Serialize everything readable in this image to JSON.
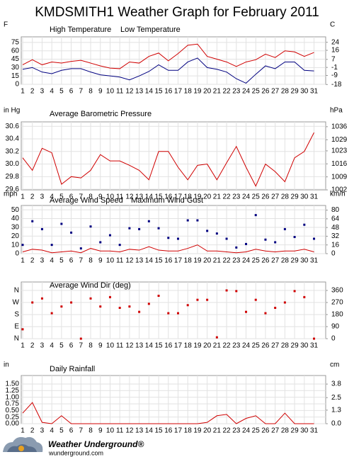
{
  "title": "KMDSMITH1 Weather Graph for February 2011",
  "chart_data": [
    {
      "type": "line",
      "ylabel": "F",
      "y2label": "C",
      "x": [
        1,
        2,
        3,
        4,
        5,
        6,
        7,
        8,
        9,
        10,
        11,
        12,
        13,
        14,
        15,
        16,
        17,
        18,
        19,
        20,
        21,
        22,
        23,
        24,
        25,
        26,
        27,
        28,
        29,
        30,
        31
      ],
      "xticks": [
        1,
        2,
        3,
        4,
        5,
        6,
        7,
        8,
        9,
        10,
        11,
        12,
        13,
        14,
        15,
        16,
        17,
        18,
        19,
        20,
        21,
        22,
        23,
        24,
        25,
        26,
        27,
        28,
        29,
        30,
        31
      ],
      "xlim": [
        1,
        32.2
      ],
      "ylim": [
        0,
        85
      ],
      "yticks": [
        75,
        60,
        45,
        30,
        15,
        0
      ],
      "y2lim": [
        -17.8,
        29.4
      ],
      "y2ticks": [
        24,
        16,
        7,
        -1,
        -9,
        -18
      ],
      "grid": true,
      "series": [
        {
          "name": "High Temperature",
          "color": "#d00000",
          "values": [
            35,
            44,
            35,
            40,
            38,
            41,
            43,
            38,
            33,
            29,
            28,
            40,
            38,
            50,
            56,
            42,
            55,
            70,
            72,
            50,
            45,
            40,
            32,
            40,
            44,
            54,
            48,
            60,
            58,
            50,
            57
          ]
        },
        {
          "name": "Low Temperature",
          "color": "#000080",
          "values": [
            27,
            30,
            22,
            19,
            25,
            28,
            28,
            22,
            17,
            15,
            13,
            8,
            15,
            23,
            35,
            25,
            25,
            40,
            47,
            30,
            27,
            22,
            10,
            2,
            18,
            33,
            28,
            40,
            40,
            25,
            24
          ]
        }
      ]
    },
    {
      "type": "line",
      "ylabel": "in Hg",
      "y2label": "hPa",
      "x": [
        1,
        2,
        3,
        4,
        5,
        6,
        7,
        8,
        9,
        10,
        11,
        12,
        13,
        14,
        15,
        16,
        17,
        18,
        19,
        20,
        21,
        22,
        23,
        24,
        25,
        26,
        27,
        28,
        29,
        30,
        31
      ],
      "xticks": [
        1,
        2,
        3,
        4,
        5,
        6,
        7,
        8,
        9,
        10,
        11,
        12,
        13,
        14,
        15,
        16,
        17,
        18,
        19,
        20,
        21,
        22,
        23,
        24,
        25,
        26,
        27,
        28,
        29,
        30,
        31
      ],
      "xlim": [
        1,
        32.2
      ],
      "ylim": [
        29.59,
        30.67
      ],
      "yticks": [
        30.6,
        30.4,
        30.2,
        {
          "value": 30,
          "label": "30.0"
        },
        29.8,
        29.6
      ],
      "y2lim": [
        1002.0,
        1038.6
      ],
      "y2ticks": [
        1036,
        1029,
        1023,
        1016,
        1009,
        1002
      ],
      "grid": true,
      "series": [
        {
          "name": "Average Barometric Pressure",
          "color": "#d00000",
          "values": [
            30.1,
            29.9,
            30.25,
            30.18,
            29.68,
            29.8,
            29.78,
            29.9,
            30.15,
            30.05,
            30.05,
            29.98,
            29.9,
            29.75,
            30.2,
            30.2,
            29.95,
            29.75,
            29.98,
            30.0,
            29.75,
            30.02,
            30.28,
            29.95,
            29.65,
            30.0,
            29.88,
            29.72,
            30.1,
            30.2,
            30.5
          ]
        }
      ]
    },
    {
      "type": "line",
      "ylabel": "mph",
      "y2label": "km/h",
      "x": [
        1,
        2,
        3,
        4,
        5,
        6,
        7,
        8,
        9,
        10,
        11,
        12,
        13,
        14,
        15,
        16,
        17,
        18,
        19,
        20,
        21,
        22,
        23,
        24,
        25,
        26,
        27,
        28,
        29,
        30,
        31
      ],
      "xticks": [
        1,
        2,
        3,
        4,
        5,
        6,
        7,
        8,
        9,
        10,
        11,
        12,
        13,
        14,
        15,
        16,
        17,
        18,
        19,
        20,
        21,
        22,
        23,
        24,
        25,
        26,
        27,
        28,
        29,
        30,
        31
      ],
      "xlim": [
        1,
        32.2
      ],
      "ylim": [
        0,
        55
      ],
      "yticks": [
        50,
        40,
        30,
        20,
        10,
        0
      ],
      "y2lim": [
        0,
        88.5
      ],
      "y2ticks": [
        80,
        64,
        48,
        32,
        16,
        0
      ],
      "grid": true,
      "series": [
        {
          "name": "Average Wind Speed",
          "color": "#d00000",
          "style": "line",
          "values": [
            2,
            5,
            4,
            1,
            2,
            3,
            1,
            6,
            3,
            3,
            2,
            5,
            4,
            8,
            4,
            3,
            3,
            6,
            10,
            3,
            3,
            2,
            1,
            2,
            5,
            3,
            2,
            3,
            3,
            5,
            2
          ]
        },
        {
          "name": "Maximum Wind Gust",
          "color": "#000080",
          "style": "dots",
          "values": [
            10,
            37,
            28,
            10,
            34,
            24,
            6,
            31,
            13,
            21,
            10,
            29,
            28,
            37,
            29,
            18,
            17,
            38,
            38,
            26,
            23,
            17,
            7,
            11,
            44,
            16,
            13,
            28,
            19,
            33,
            17
          ]
        }
      ]
    },
    {
      "type": "scatter",
      "x": [
        1,
        2,
        3,
        4,
        5,
        6,
        7,
        8,
        9,
        10,
        11,
        12,
        13,
        14,
        15,
        16,
        17,
        18,
        19,
        20,
        21,
        22,
        23,
        24,
        25,
        26,
        27,
        28,
        29,
        30,
        31
      ],
      "xticks": [
        1,
        2,
        3,
        4,
        5,
        6,
        7,
        8,
        9,
        10,
        11,
        12,
        13,
        14,
        15,
        16,
        17,
        18,
        19,
        20,
        21,
        22,
        23,
        24,
        25,
        26,
        27,
        28,
        29,
        30,
        31
      ],
      "xlim": [
        1,
        32.2
      ],
      "ylim": [
        0,
        423
      ],
      "yticks": [
        {
          "value": 360,
          "label": "N"
        },
        {
          "value": 270,
          "label": "W"
        },
        {
          "value": 180,
          "label": "S"
        },
        {
          "value": 90,
          "label": "E"
        },
        {
          "value": 0,
          "label": "N"
        }
      ],
      "ytick_color": "#d00000",
      "y2lim": [
        0,
        423
      ],
      "y2ticks": [
        360,
        270,
        180,
        90,
        0
      ],
      "grid": true,
      "series": [
        {
          "name": "Average Wind Dir (deg)",
          "color": "#d00000",
          "values": [
            70,
            270,
            300,
            190,
            240,
            270,
            0,
            300,
            240,
            310,
            230,
            240,
            200,
            260,
            320,
            190,
            190,
            250,
            290,
            290,
            10,
            360,
            355,
            200,
            290,
            190,
            230,
            270,
            355,
            310,
            0
          ]
        }
      ]
    },
    {
      "type": "line",
      "ylabel": "in",
      "y2label": "cm",
      "x": [
        1,
        2,
        3,
        4,
        5,
        6,
        7,
        8,
        9,
        10,
        11,
        12,
        13,
        14,
        15,
        16,
        17,
        18,
        19,
        20,
        21,
        22,
        23,
        24,
        25,
        26,
        27,
        28,
        29,
        30,
        31
      ],
      "xticks": [
        1,
        2,
        3,
        4,
        5,
        6,
        7,
        8,
        9,
        10,
        11,
        12,
        13,
        14,
        15,
        16,
        17,
        18,
        19,
        20,
        21,
        22,
        23,
        24,
        25,
        26,
        27,
        28,
        29,
        30,
        31
      ],
      "xlim": [
        1,
        32.2
      ],
      "ylim": [
        0,
        1.82
      ],
      "yticks": [
        {
          "value": 1.5,
          "label": "1.50"
        },
        {
          "value": 1.25,
          "label": "1.25"
        },
        {
          "value": 1,
          "label": "1.00"
        },
        {
          "value": 0.75,
          "label": "0.75"
        },
        {
          "value": 0.5,
          "label": "0.50"
        },
        {
          "value": 0.25,
          "label": "0.25"
        },
        {
          "value": 0,
          "label": "0.00"
        }
      ],
      "y2lim": [
        0,
        4.62
      ],
      "y2ticks": [
        3.8,
        2.5,
        1.3,
        {
          "value": 0,
          "label": "0.0"
        }
      ],
      "grid": true,
      "series": [
        {
          "name": "Daily Rainfall",
          "color": "#d00000",
          "values": [
            0.4,
            0.8,
            0.05,
            0,
            0.3,
            0,
            0,
            0,
            0,
            0,
            0,
            0,
            0,
            0,
            0,
            0,
            0,
            0,
            0,
            0.05,
            0.3,
            0.35,
            0,
            0.2,
            0.3,
            0,
            0,
            0.4,
            0,
            0,
            0
          ]
        }
      ]
    }
  ],
  "footer": {
    "brand": "Weather Underground®",
    "url": "wunderground.com"
  }
}
